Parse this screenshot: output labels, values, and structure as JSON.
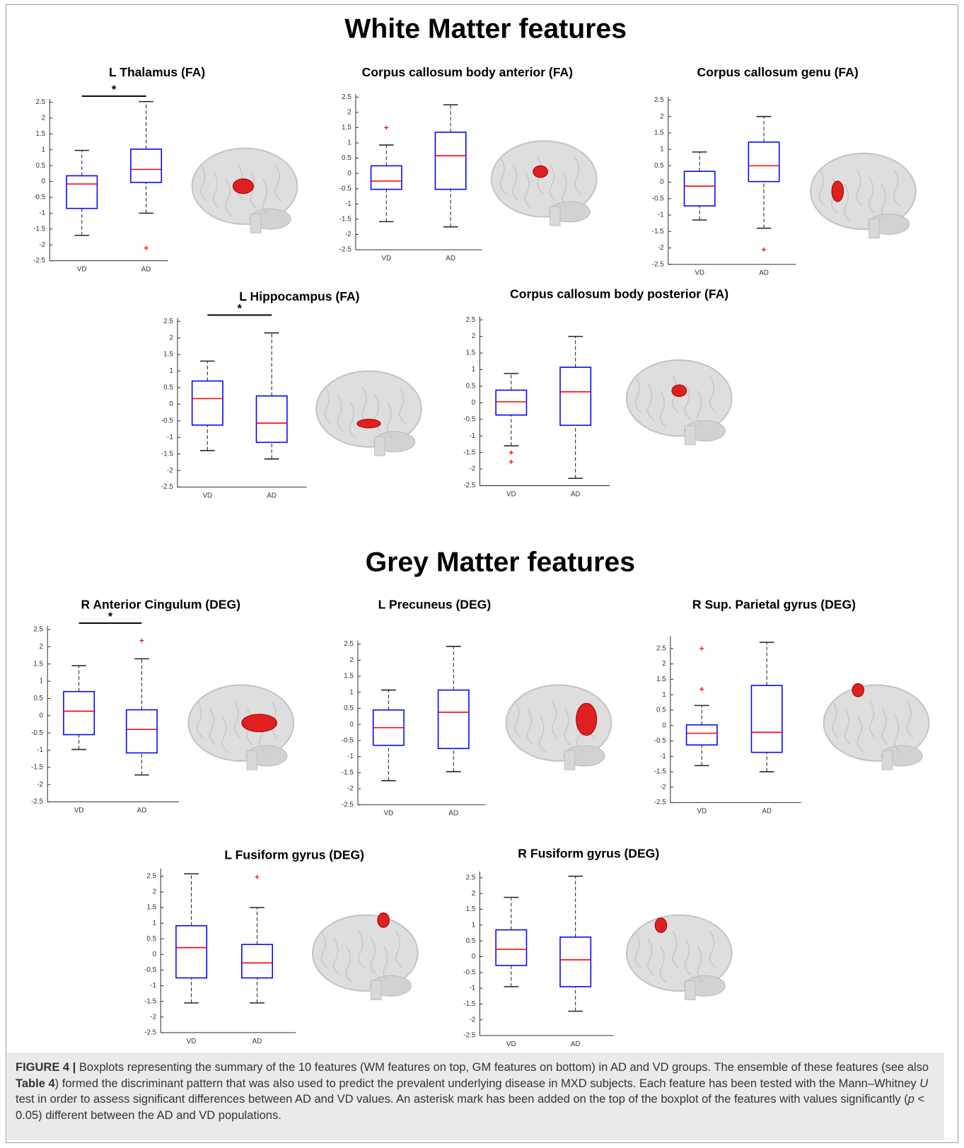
{
  "sections": [
    "White Matter features",
    "Grey Matter features"
  ],
  "chart_data": [
    {
      "type": "box",
      "title": "L Thalamus (FA)",
      "categories": [
        "VD",
        "AD"
      ],
      "box_color": "#0000ff",
      "median_color": "#ff0000",
      "annotation": "*",
      "ylim": [
        -2.5,
        2.6
      ],
      "yticks": [
        -2.5,
        -2,
        -1.5,
        -1,
        -0.5,
        0,
        0.5,
        1,
        1.5,
        2,
        2.5
      ],
      "boxes": [
        {
          "whislo": -1.7,
          "q1": -0.85,
          "med": -0.08,
          "q3": 0.18,
          "whishi": 0.98,
          "fliers": []
        },
        {
          "whislo": -1.0,
          "q1": -0.03,
          "med": 0.38,
          "q3": 1.02,
          "whishi": 2.52,
          "fliers": [
            -2.1
          ]
        }
      ]
    },
    {
      "type": "box",
      "title": "Corpus callosum body anterior (FA)",
      "categories": [
        "VD",
        "AD"
      ],
      "box_color": "#0000ff",
      "median_color": "#ff0000",
      "ylim": [
        -2.5,
        2.6
      ],
      "yticks": [
        -2.5,
        -2,
        -1.5,
        -1,
        -0.5,
        0,
        0.5,
        1,
        1.5,
        2,
        2.5
      ],
      "boxes": [
        {
          "whislo": -1.58,
          "q1": -0.52,
          "med": -0.25,
          "q3": 0.25,
          "whishi": 0.93,
          "fliers": [
            1.5
          ]
        },
        {
          "whislo": -1.75,
          "q1": -0.52,
          "med": 0.58,
          "q3": 1.35,
          "whishi": 2.25,
          "fliers": []
        }
      ]
    },
    {
      "type": "box",
      "title": "Corpus callosum genu (FA)",
      "categories": [
        "VD",
        "AD"
      ],
      "box_color": "#0000ff",
      "median_color": "#ff0000",
      "ylim": [
        -2.5,
        2.6
      ],
      "yticks": [
        -2.5,
        -2,
        -1.5,
        -1,
        -0.5,
        0,
        0.5,
        1,
        1.5,
        2,
        2.5
      ],
      "boxes": [
        {
          "whislo": -1.15,
          "q1": -0.72,
          "med": -0.12,
          "q3": 0.33,
          "whishi": 0.92,
          "fliers": []
        },
        {
          "whislo": -1.4,
          "q1": 0.02,
          "med": 0.5,
          "q3": 1.22,
          "whishi": 2.0,
          "fliers": [
            -2.05
          ]
        }
      ]
    },
    {
      "type": "box",
      "title": "L Hippocampus (FA)",
      "categories": [
        "VD",
        "AD"
      ],
      "box_color": "#0000ff",
      "median_color": "#ff0000",
      "annotation": "*",
      "ylim": [
        -2.5,
        2.6
      ],
      "yticks": [
        -2.5,
        -2,
        -1.5,
        -1,
        -0.5,
        0,
        0.5,
        1,
        1.5,
        2,
        2.5
      ],
      "boxes": [
        {
          "whislo": -1.4,
          "q1": -0.63,
          "med": 0.17,
          "q3": 0.7,
          "whishi": 1.3,
          "fliers": []
        },
        {
          "whislo": -1.65,
          "q1": -1.15,
          "med": -0.57,
          "q3": 0.25,
          "whishi": 2.15,
          "fliers": []
        }
      ]
    },
    {
      "type": "box",
      "title": "Corpus callosum body posterior (FA)",
      "categories": [
        "VD",
        "AD"
      ],
      "box_color": "#0000ff",
      "median_color": "#ff0000",
      "ylim": [
        -2.5,
        2.6
      ],
      "yticks": [
        -2.5,
        -2,
        -1.5,
        -1,
        -0.5,
        0,
        0.5,
        1,
        1.5,
        2,
        2.5
      ],
      "boxes": [
        {
          "whislo": -1.3,
          "q1": -0.37,
          "med": 0.03,
          "q3": 0.38,
          "whishi": 0.88,
          "fliers": [
            -1.5,
            -1.78
          ]
        },
        {
          "whislo": -2.28,
          "q1": -0.68,
          "med": 0.33,
          "q3": 1.07,
          "whishi": 2.0,
          "fliers": []
        }
      ]
    },
    {
      "type": "box",
      "title": "R Anterior Cingulum (DEG)",
      "categories": [
        "VD",
        "AD"
      ],
      "box_color": "#0000ff",
      "median_color": "#ff0000",
      "annotation": "*",
      "ylim": [
        -2.5,
        2.6
      ],
      "yticks": [
        -2.5,
        -2,
        -1.5,
        -1,
        -0.5,
        0,
        0.5,
        1,
        1.5,
        2,
        2.5
      ],
      "boxes": [
        {
          "whislo": -0.98,
          "q1": -0.55,
          "med": 0.13,
          "q3": 0.7,
          "whishi": 1.45,
          "fliers": []
        },
        {
          "whislo": -1.72,
          "q1": -1.08,
          "med": -0.4,
          "q3": 0.17,
          "whishi": 1.65,
          "fliers": [
            2.18
          ]
        }
      ]
    },
    {
      "type": "box",
      "title": "L Precuneus (DEG)",
      "categories": [
        "VD",
        "AD"
      ],
      "box_color": "#0000ff",
      "median_color": "#ff0000",
      "ylim": [
        -2.5,
        2.6
      ],
      "yticks": [
        -2.5,
        -2,
        -1.5,
        -1,
        -0.5,
        0,
        0.5,
        1,
        1.5,
        2,
        2.5
      ],
      "boxes": [
        {
          "whislo": -1.75,
          "q1": -0.65,
          "med": -0.1,
          "q3": 0.45,
          "whishi": 1.07,
          "fliers": []
        },
        {
          "whislo": -1.47,
          "q1": -0.75,
          "med": 0.38,
          "q3": 1.07,
          "whishi": 2.43,
          "fliers": []
        }
      ]
    },
    {
      "type": "box",
      "title": "R Sup. Parietal gyrus (DEG)",
      "categories": [
        "VD",
        "AD"
      ],
      "box_color": "#0000ff",
      "median_color": "#ff0000",
      "ylim": [
        -2.5,
        2.9
      ],
      "yticks": [
        -2.5,
        -2,
        -1.5,
        -1,
        -0.5,
        0,
        0.5,
        1,
        1.5,
        2,
        2.5
      ],
      "boxes": [
        {
          "whislo": -1.3,
          "q1": -0.63,
          "med": -0.25,
          "q3": 0.02,
          "whishi": 0.65,
          "fliers": [
            1.18,
            2.5
          ]
        },
        {
          "whislo": -1.5,
          "q1": -0.87,
          "med": -0.22,
          "q3": 1.3,
          "whishi": 2.7,
          "fliers": []
        }
      ]
    },
    {
      "type": "box",
      "title": "L Fusiform gyrus (DEG)",
      "categories": [
        "VD",
        "AD"
      ],
      "box_color": "#0000ff",
      "median_color": "#ff0000",
      "ylim": [
        -2.5,
        2.75
      ],
      "yticks": [
        -2.5,
        -2,
        -1.5,
        -1,
        -0.5,
        0,
        0.5,
        1,
        1.5,
        2,
        2.5
      ],
      "boxes": [
        {
          "whislo": -1.55,
          "q1": -0.75,
          "med": 0.22,
          "q3": 0.92,
          "whishi": 2.58,
          "fliers": []
        },
        {
          "whislo": -1.55,
          "q1": -0.75,
          "med": -0.27,
          "q3": 0.32,
          "whishi": 1.5,
          "fliers": [
            2.48
          ]
        }
      ]
    },
    {
      "type": "box",
      "title": "R Fusiform gyrus (DEG)",
      "categories": [
        "VD",
        "AD"
      ],
      "box_color": "#0000ff",
      "median_color": "#ff0000",
      "ylim": [
        -2.5,
        2.7
      ],
      "yticks": [
        -2.5,
        -2,
        -1.5,
        -1,
        -0.5,
        0,
        0.5,
        1,
        1.5,
        2,
        2.5
      ],
      "boxes": [
        {
          "whislo": -0.95,
          "q1": -0.28,
          "med": 0.23,
          "q3": 0.85,
          "whishi": 1.88,
          "fliers": []
        },
        {
          "whislo": -1.73,
          "q1": -0.95,
          "med": -0.1,
          "q3": 0.62,
          "whishi": 2.55,
          "fliers": []
        }
      ]
    }
  ],
  "caption": [
    "FIGURE 4 |",
    " Boxplots representing the summary of the 10 features (WM features on top, GM features on bottom) in AD and VD groups. The ensemble of these features (see also ",
    "Table 4",
    ") formed the discriminant pattern that was also used to predict the prevalent underlying disease in MXD subjects. Each feature has been tested with the Mann–Whitney ",
    "U",
    " test in order to assess significant differences between AD and VD values. An asterisk mark has been added on the top of the boxplot of the features with values significantly (",
    "p",
    " < 0.05) different between the AD and VD populations."
  ]
}
